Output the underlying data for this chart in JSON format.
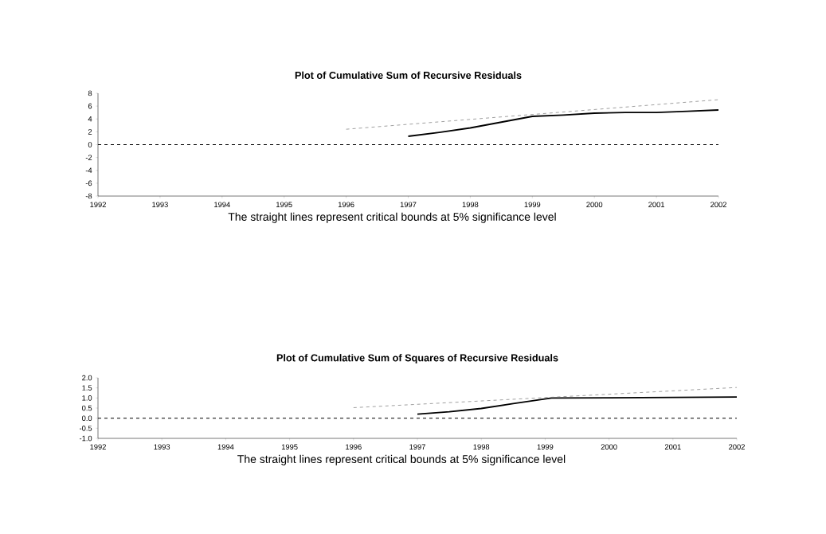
{
  "chart_data": [
    {
      "type": "line",
      "title": "Plot of Cumulative Sum of Recursive Residuals",
      "annotations": [
        "The straight lines represent critical bounds at 5% significance level"
      ],
      "xlim": [
        1992,
        2002
      ],
      "xticks": [
        1992,
        1993,
        1994,
        1995,
        1996,
        1997,
        1998,
        1999,
        2000,
        2001,
        2002
      ],
      "ylim": [
        -8,
        8
      ],
      "yticks": [
        -8,
        -6,
        -4,
        -2,
        0,
        2,
        4,
        6,
        8
      ],
      "series": [
        {
          "color": "#000000",
          "x": [
            1997,
            1997.5,
            1998,
            1998.5,
            1999,
            1999.5,
            2000,
            2000.5,
            2001,
            2001.5,
            2002
          ],
          "values": [
            1.3,
            1.9,
            2.6,
            3.5,
            4.4,
            4.6,
            4.9,
            5.0,
            5.0,
            5.2,
            5.4
          ]
        },
        {
          "color": "#888888",
          "line_style": "dashed",
          "x": [
            1996,
            2002
          ],
          "values": [
            2.4,
            7.0
          ]
        }
      ],
      "ref_lines": [
        {
          "axis": "y",
          "value": 0,
          "color": "#000000",
          "line_style": "dashed"
        }
      ]
    },
    {
      "type": "line",
      "title": "Plot of Cumulative Sum of Squares of Recursive Residuals",
      "annotations": [
        "The straight lines represent critical bounds at 5% significance level"
      ],
      "xlim": [
        1992,
        2002
      ],
      "xticks": [
        1992,
        1993,
        1994,
        1995,
        1996,
        1997,
        1998,
        1999,
        2000,
        2001,
        2002
      ],
      "ylim": [
        -1,
        2
      ],
      "yticks": [
        {
          "value": -1,
          "label": "-1.0"
        },
        {
          "value": -0.5,
          "label": "-0.5"
        },
        {
          "value": 0,
          "label": "0.0"
        },
        {
          "value": 0.5,
          "label": "0.5"
        },
        {
          "value": 1,
          "label": "1.0"
        },
        {
          "value": 1.5,
          "label": "1.5"
        },
        {
          "value": 2,
          "label": "2.0"
        }
      ],
      "series": [
        {
          "color": "#000000",
          "x": [
            1997,
            1997.5,
            1998,
            1998.5,
            1999.1,
            2000,
            2001,
            2002
          ],
          "values": [
            0.2,
            0.32,
            0.48,
            0.72,
            1.0,
            1.01,
            1.03,
            1.05
          ]
        },
        {
          "color": "#888888",
          "line_style": "dashed",
          "x": [
            1996,
            2002
          ],
          "values": [
            0.52,
            1.52
          ]
        }
      ],
      "ref_lines": [
        {
          "axis": "y",
          "value": 0,
          "color": "#000000",
          "line_style": "dashed"
        }
      ]
    }
  ]
}
